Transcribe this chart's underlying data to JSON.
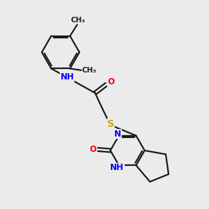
{
  "background_color": "#ebebeb",
  "bond_color": "#1a1a1a",
  "N_color": "#0000ff",
  "O_color": "#ff0000",
  "S_color": "#ccaa00",
  "figsize": [
    3.0,
    3.0
  ],
  "dpi": 100,
  "xlim": [
    0,
    10
  ],
  "ylim": [
    0,
    10
  ],
  "lw": 1.6,
  "fs": 8.5
}
